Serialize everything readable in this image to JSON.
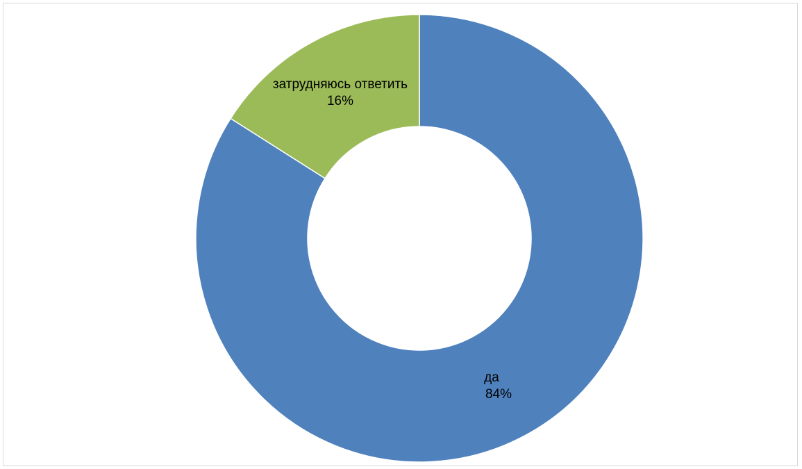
{
  "chart_data": {
    "type": "pie",
    "variant": "donut",
    "title": "",
    "slices": [
      {
        "label": "да",
        "percent_label": "84%",
        "value": 84,
        "color": "#4f81bd"
      },
      {
        "label": "затрудняюсь ответить",
        "percent_label": "16%",
        "value": 16,
        "color": "#9bbb59"
      }
    ],
    "start": "12 o'clock",
    "direction": "clockwise",
    "legend": "none",
    "slice_border_color": "#ffffff"
  }
}
